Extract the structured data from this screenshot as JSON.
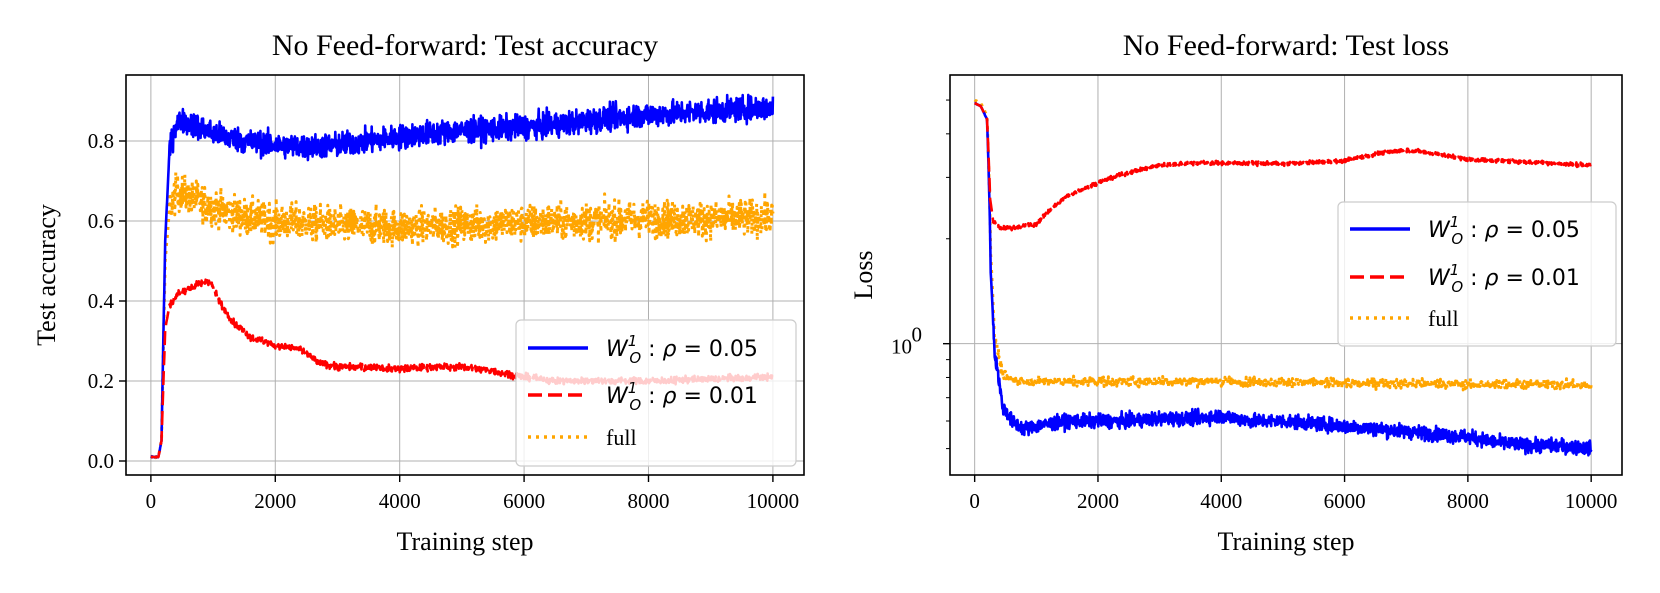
{
  "chart_data": [
    {
      "type": "line",
      "title": "No Feed-forward: Test accuracy",
      "xlabel": "Training step",
      "ylabel": "Test accuracy",
      "xlim": [
        -400,
        10500
      ],
      "ylim": [
        -0.035,
        0.965
      ],
      "yscale": "linear",
      "grid": true,
      "legend_position": "lower-right",
      "xticks": [
        0,
        2000,
        4000,
        6000,
        8000,
        10000
      ],
      "xtick_labels": [
        "0",
        "2000",
        "4000",
        "6000",
        "8000",
        "10000"
      ],
      "yticks": [
        0.0,
        0.2,
        0.4,
        0.6,
        0.8
      ],
      "ytick_labels": [
        "0.0",
        "0.2",
        "0.4",
        "0.6",
        "0.8"
      ],
      "series": [
        {
          "name": "W_O^1 : ρ = 0.05",
          "color": "#0000ff",
          "style": "solid",
          "noise": 0.03,
          "x": [
            0,
            120,
            170,
            230,
            300,
            400,
            500,
            700,
            1000,
            1500,
            2000,
            2500,
            3000,
            3500,
            4000,
            4500,
            5000,
            5500,
            6000,
            6500,
            7000,
            7500,
            8000,
            8500,
            9000,
            9500,
            10000
          ],
          "y": [
            0.01,
            0.01,
            0.05,
            0.55,
            0.78,
            0.84,
            0.85,
            0.84,
            0.82,
            0.8,
            0.79,
            0.785,
            0.79,
            0.8,
            0.81,
            0.82,
            0.825,
            0.83,
            0.835,
            0.84,
            0.85,
            0.86,
            0.865,
            0.87,
            0.875,
            0.88,
            0.885
          ]
        },
        {
          "name": "W_O^1 : ρ = 0.01",
          "color": "#ff0000",
          "style": "dashed",
          "noise": 0.008,
          "x": [
            0,
            120,
            170,
            230,
            300,
            450,
            600,
            800,
            950,
            1100,
            1300,
            1600,
            2000,
            2400,
            2700,
            3000,
            3500,
            4000,
            4500,
            5000,
            5500,
            6000,
            6500,
            7000,
            8000,
            9000,
            10000
          ],
          "y": [
            0.01,
            0.01,
            0.05,
            0.33,
            0.39,
            0.42,
            0.43,
            0.445,
            0.45,
            0.4,
            0.35,
            0.31,
            0.29,
            0.28,
            0.245,
            0.235,
            0.235,
            0.23,
            0.235,
            0.235,
            0.225,
            0.21,
            0.2,
            0.2,
            0.2,
            0.205,
            0.21
          ]
        },
        {
          "name": "full",
          "color": "#ffa500",
          "style": "dotted",
          "noise": 0.045,
          "x": [
            0,
            120,
            170,
            230,
            300,
            400,
            500,
            700,
            1000,
            1500,
            2000,
            3000,
            4000,
            5000,
            6000,
            7000,
            8000,
            9000,
            10000
          ],
          "y": [
            0.01,
            0.01,
            0.05,
            0.5,
            0.63,
            0.67,
            0.67,
            0.655,
            0.635,
            0.61,
            0.6,
            0.59,
            0.585,
            0.59,
            0.595,
            0.6,
            0.605,
            0.605,
            0.61
          ]
        }
      ]
    },
    {
      "type": "line",
      "title": "No Feed-forward: Test loss",
      "xlabel": "Training step",
      "ylabel": "Loss",
      "xlim": [
        -400,
        10500
      ],
      "ylim": [
        0.42,
        5.9
      ],
      "yscale": "log",
      "grid": true,
      "legend_position": "center-right",
      "xticks": [
        0,
        2000,
        4000,
        6000,
        8000,
        10000
      ],
      "xtick_labels": [
        "0",
        "2000",
        "4000",
        "6000",
        "8000",
        "10000"
      ],
      "ytick_major": 1,
      "ytick_major_label": "10",
      "ytick_major_exponent": "0",
      "series": [
        {
          "name": "W_O^1 : ρ = 0.05",
          "color": "#0000ff",
          "style": "solid",
          "noise": 0.045,
          "x": [
            0,
            100,
            200,
            260,
            320,
            450,
            600,
            800,
            1000,
            1500,
            2000,
            2500,
            3000,
            3500,
            4000,
            4500,
            5000,
            6000,
            7000,
            8000,
            8500,
            9000,
            9500,
            10000
          ],
          "y": [
            4.9,
            4.8,
            4.4,
            1.6,
            0.95,
            0.66,
            0.6,
            0.57,
            0.58,
            0.6,
            0.6,
            0.6,
            0.61,
            0.61,
            0.62,
            0.6,
            0.6,
            0.58,
            0.56,
            0.54,
            0.52,
            0.51,
            0.51,
            0.5
          ]
        },
        {
          "name": "W_O^1 : ρ = 0.01",
          "color": "#ff0000",
          "style": "dashed",
          "noise": 0.012,
          "x": [
            0,
            100,
            200,
            250,
            300,
            400,
            600,
            800,
            1000,
            1200,
            1500,
            2000,
            2500,
            3000,
            3500,
            4000,
            5000,
            6000,
            6500,
            7000,
            7500,
            8000,
            9000,
            10000
          ],
          "y": [
            4.9,
            4.8,
            4.4,
            2.6,
            2.25,
            2.15,
            2.15,
            2.18,
            2.2,
            2.4,
            2.65,
            2.9,
            3.1,
            3.25,
            3.3,
            3.3,
            3.28,
            3.35,
            3.5,
            3.6,
            3.5,
            3.38,
            3.32,
            3.25
          ]
        },
        {
          "name": "full",
          "color": "#ffa500",
          "style": "dotted",
          "noise": 0.03,
          "x": [
            0,
            100,
            200,
            260,
            320,
            450,
            600,
            1000,
            2000,
            3000,
            4000,
            5000,
            6000,
            7000,
            8000,
            9000,
            10000
          ],
          "y": [
            5.0,
            4.9,
            4.5,
            1.8,
            1.05,
            0.82,
            0.78,
            0.78,
            0.78,
            0.78,
            0.78,
            0.775,
            0.77,
            0.77,
            0.765,
            0.765,
            0.76
          ]
        }
      ]
    }
  ]
}
